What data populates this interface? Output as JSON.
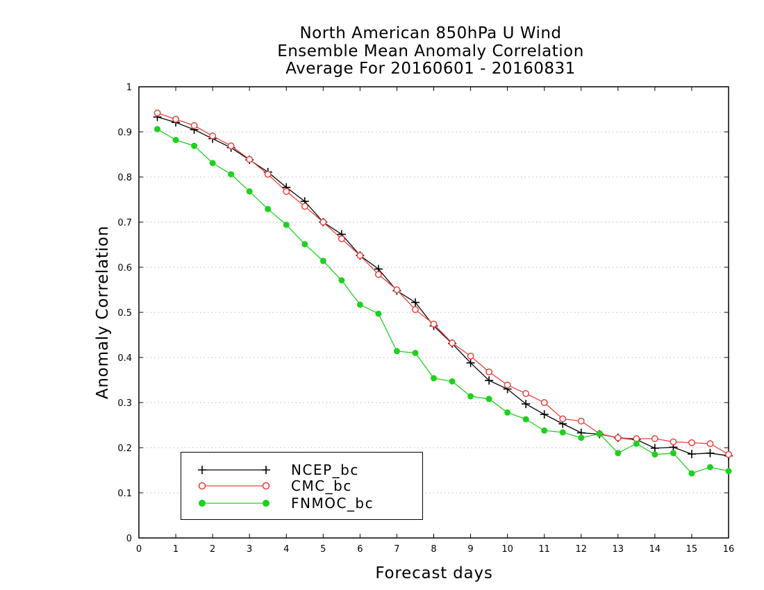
{
  "chart": {
    "title_lines": [
      "North American 850hPa U Wind",
      "Ensemble Mean Anomaly Correlation",
      "Average For 20160601 - 20160831"
    ]
  },
  "chart_data": {
    "type": "line",
    "title": "North American 850hPa U Wind Ensemble Mean Anomaly Correlation Average For 20160601 - 20160831",
    "xlabel": "Forecast days",
    "ylabel": "Anomaly Correlation",
    "xlim": [
      0,
      16
    ],
    "ylim": [
      0,
      1
    ],
    "xticks": [
      "0",
      "1",
      "2",
      "3",
      "4",
      "5",
      "6",
      "7",
      "8",
      "9",
      "10",
      "11",
      "12",
      "13",
      "14",
      "15",
      "16"
    ],
    "yticks": [
      "0",
      "0.1",
      "0.2",
      "0.3",
      "0.4",
      "0.5",
      "0.6",
      "0.7",
      "0.8",
      "0.9",
      "1"
    ],
    "grid": "horizontal dotted",
    "legend_position": "bottom-left",
    "x": [
      0.5,
      1,
      1.5,
      2,
      2.5,
      3,
      3.5,
      4,
      4.5,
      5,
      5.5,
      6,
      6.5,
      7,
      7.5,
      8,
      8.5,
      9,
      9.5,
      10,
      10.5,
      11,
      11.5,
      12,
      12.5,
      13,
      13.5,
      14,
      14.5,
      15,
      15.5,
      16
    ],
    "series": [
      {
        "name": "NCEP_bc",
        "color": "#000000",
        "marker": "plus",
        "values": [
          0.933,
          0.921,
          0.905,
          0.885,
          0.865,
          0.838,
          0.811,
          0.777,
          0.746,
          0.7,
          0.673,
          0.626,
          0.596,
          0.548,
          0.522,
          0.47,
          0.431,
          0.388,
          0.349,
          0.33,
          0.297,
          0.274,
          0.253,
          0.233,
          0.23,
          0.222,
          0.218,
          0.199,
          0.201,
          0.186,
          0.188,
          0.182
        ]
      },
      {
        "name": "CMC_bc",
        "color": "#e8423c",
        "marker": "open-circle",
        "values": [
          0.942,
          0.928,
          0.914,
          0.891,
          0.869,
          0.839,
          0.806,
          0.768,
          0.735,
          0.7,
          0.663,
          0.626,
          0.584,
          0.55,
          0.506,
          0.474,
          0.432,
          0.403,
          0.368,
          0.339,
          0.32,
          0.3,
          0.264,
          0.259,
          0.231,
          0.222,
          0.22,
          0.22,
          0.213,
          0.211,
          0.209,
          0.185
        ]
      },
      {
        "name": "FNMOC_bc",
        "color": "#1ed11e",
        "marker": "filled-circle",
        "values": [
          0.906,
          0.882,
          0.869,
          0.831,
          0.806,
          0.768,
          0.729,
          0.694,
          0.651,
          0.614,
          0.571,
          0.517,
          0.497,
          0.414,
          0.41,
          0.354,
          0.347,
          0.314,
          0.308,
          0.278,
          0.263,
          0.238,
          0.234,
          0.222,
          0.231,
          0.188,
          0.209,
          0.185,
          0.188,
          0.143,
          0.157,
          0.148
        ]
      }
    ]
  }
}
